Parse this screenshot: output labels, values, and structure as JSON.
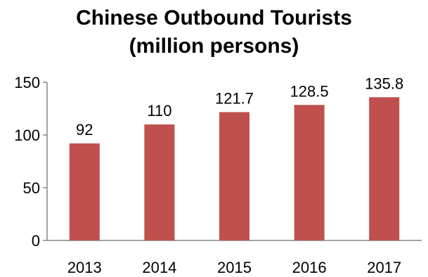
{
  "chart_data": {
    "type": "bar",
    "title": "Chinese Outbound Tourists",
    "subtitle": "(million persons)",
    "categories": [
      "2013",
      "2014",
      "2015",
      "2016",
      "2017"
    ],
    "values": [
      92,
      110,
      121.7,
      128.5,
      135.8
    ],
    "data_labels": [
      "92",
      "110",
      "121.7",
      "128.5",
      "135.8"
    ],
    "y_ticks": [
      "0",
      "50",
      "100",
      "150"
    ],
    "ylim": [
      0,
      150
    ],
    "xlabel": "",
    "ylabel": "",
    "grid": false,
    "legend": "none",
    "bar_color": "#c0504d"
  }
}
